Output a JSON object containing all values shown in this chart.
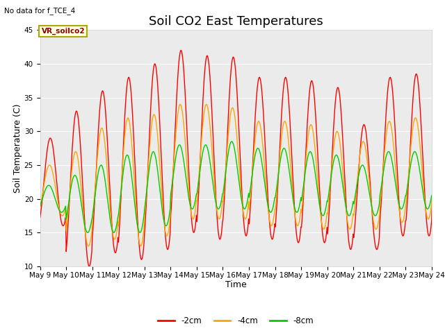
{
  "title": "Soil CO2 East Temperatures",
  "xlabel": "Time",
  "ylabel": "Soil Temperature (C)",
  "no_data_text": "No data for f_TCE_4",
  "annotation_text": "VR_soilco2",
  "ylim": [
    10,
    45
  ],
  "background_color": "#ffffff",
  "plot_bg_color": "#ebebeb",
  "grid_color": "#ffffff",
  "line_colors": {
    "-2cm": "#ff0000",
    "-4cm": "#ffa500",
    "-8cm": "#00cc00"
  },
  "legend_labels": [
    "-2cm",
    "-4cm",
    "-8cm"
  ],
  "x_tick_labels": [
    "May 9",
    "May 10",
    "May 11",
    "May 12",
    "May 13",
    "May 14",
    "May 15",
    "May 16",
    "May 17",
    "May 18",
    "May 19",
    "May 20",
    "May 21",
    "May 22",
    "May 23",
    "May 24"
  ],
  "title_fontsize": 13,
  "axis_label_fontsize": 9,
  "tick_fontsize": 7.5,
  "peaks_2cm": [
    29,
    33,
    36,
    38,
    40,
    42,
    41.2,
    41,
    38,
    38,
    37.5,
    36.5,
    31,
    38,
    38.5,
    38.5
  ],
  "troughs_2cm": [
    16,
    10,
    12,
    11,
    12.5,
    15,
    14,
    14.5,
    14,
    13.5,
    13.5,
    12.5,
    12.5,
    14.5,
    14.5,
    18
  ],
  "peaks_4cm": [
    25,
    27,
    30.5,
    32,
    32.5,
    34,
    34,
    33.5,
    31.5,
    31.5,
    31,
    30,
    28.5,
    31.5,
    32,
    32
  ],
  "troughs_4cm": [
    17.5,
    13,
    14,
    13,
    14.5,
    17,
    17,
    17,
    16,
    16,
    15.5,
    15.5,
    15.5,
    16.5,
    17,
    18
  ],
  "peaks_8cm": [
    22,
    23.5,
    25,
    26.5,
    27,
    28,
    28,
    28.5,
    27.5,
    27.5,
    27,
    26.5,
    25,
    27,
    27,
    27.5
  ],
  "troughs_8cm": [
    18,
    15,
    15,
    15,
    16,
    18.5,
    18.5,
    18.5,
    18,
    18,
    17.5,
    17.5,
    17.5,
    18.5,
    18.5,
    18.5
  ]
}
